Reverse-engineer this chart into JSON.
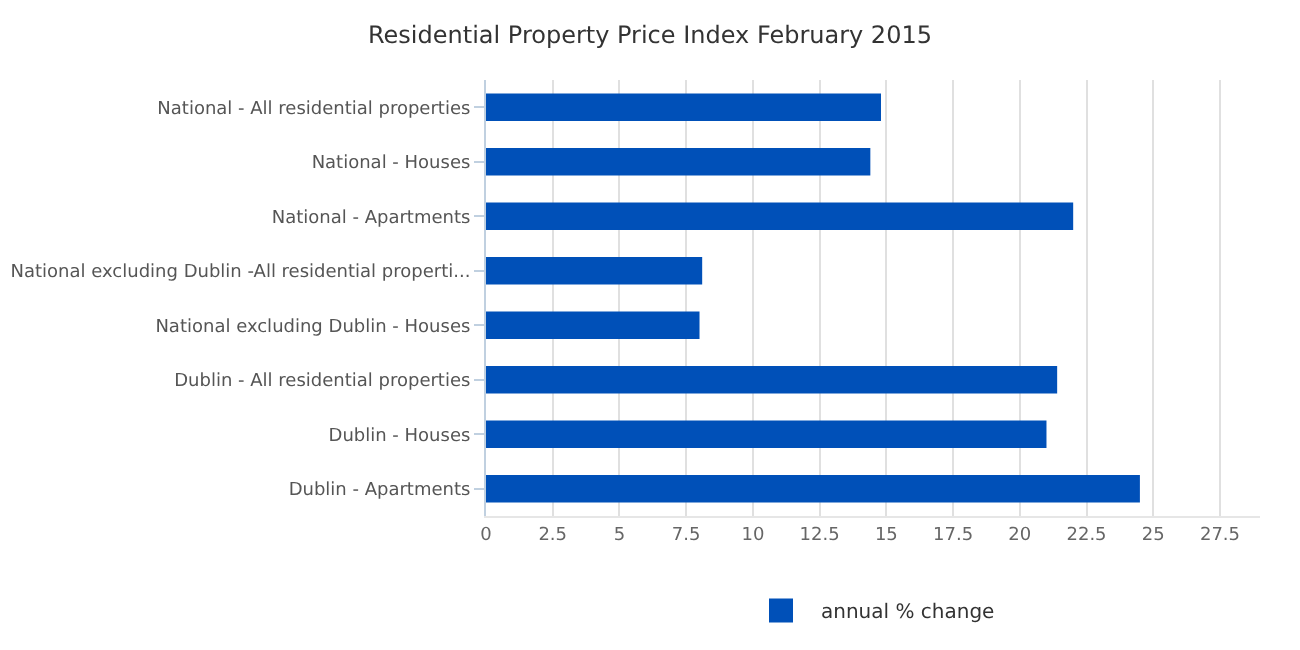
{
  "chart_data": {
    "type": "bar",
    "orientation": "horizontal",
    "title": "Residential Property Price Index February 2015",
    "categories": [
      "National - All residential properties",
      "National - Houses",
      "National - Apartments",
      "National excluding Dublin -All residential properti...",
      "National excluding Dublin - Houses",
      "Dublin - All residential properties",
      "Dublin - Houses",
      "Dublin - Apartments"
    ],
    "series": [
      {
        "name": "annual % change",
        "color": "#0050b8",
        "values": [
          14.8,
          14.4,
          22.0,
          8.1,
          8.0,
          21.4,
          21.0,
          24.5
        ]
      }
    ],
    "xlim": [
      0,
      29
    ],
    "xticks": [
      0,
      2.5,
      5,
      7.5,
      10,
      12.5,
      15,
      17.5,
      20,
      22.5,
      25,
      27.5
    ],
    "grid": "x",
    "legend": "bottom"
  }
}
